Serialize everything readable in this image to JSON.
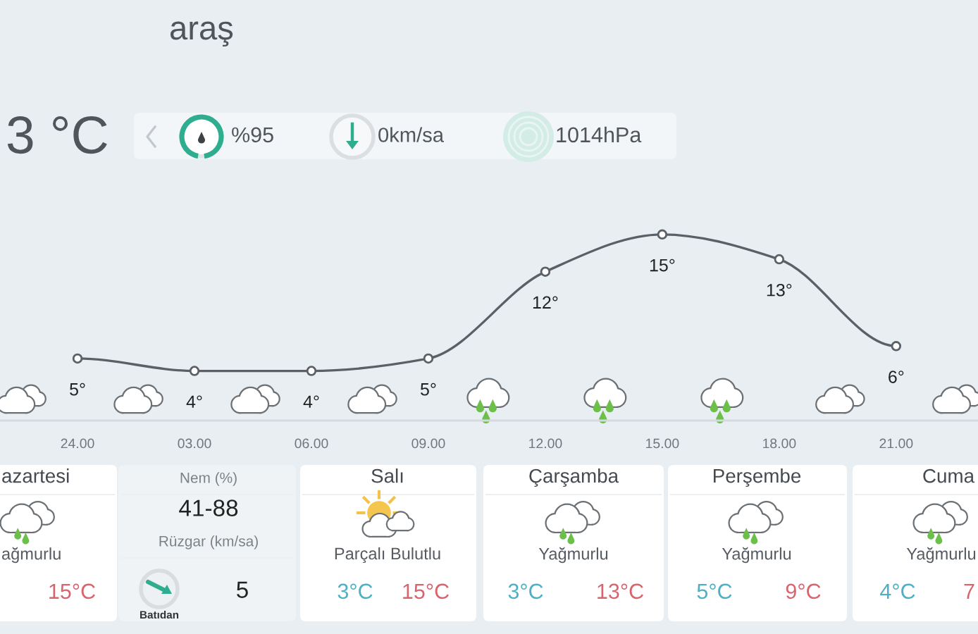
{
  "chart_data": {
    "type": "line",
    "title": "araş",
    "categories": [
      "24.00",
      "03.00",
      "06.00",
      "09.00",
      "12.00",
      "15.00",
      "18.00",
      "21.00"
    ],
    "values": [
      5,
      4,
      4,
      5,
      12,
      15,
      13,
      6
    ],
    "value_labels": [
      "5°",
      "4°",
      "4°",
      "5°",
      "12°",
      "15°",
      "13°",
      "6°"
    ],
    "color": "#5b6066",
    "marker": "circle",
    "line_style": "solid",
    "annotations": [
      "3 °C",
      "%95",
      "0km/sa",
      "1014hPa",
      "azartesi",
      "ağmurlu",
      "15°C",
      "Nem (%)",
      "41-88",
      "Rüzgar (km/sa)",
      "Batıdan",
      "5",
      "Salı",
      "Parçalı Bulutlu",
      "3°C",
      "15°C",
      "Çarşamba",
      "Yağmurlu",
      "3°C",
      "13°C",
      "Perşembe",
      "Yağmurlu",
      "5°C",
      "9°C",
      "Cuma",
      "Yağmurlu",
      "4°C",
      "7"
    ]
  }
}
